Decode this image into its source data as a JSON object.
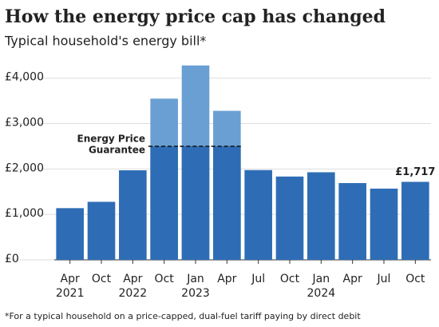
{
  "chart_data": {
    "type": "bar",
    "title": "How the energy price cap has changed",
    "subtitle": "Typical household's energy bill*",
    "footnote": "*For a typical household on a price-capped, dual-fuel tariff paying by direct debit",
    "categories": [
      "Apr",
      "Oct",
      "Apr",
      "Oct",
      "Jan",
      "Apr",
      "Jul",
      "Oct",
      "Jan",
      "Apr",
      "Jul",
      "Oct"
    ],
    "years": [
      "2021",
      null,
      "2022",
      null,
      "2023",
      null,
      null,
      null,
      "2024",
      null,
      null,
      null
    ],
    "values": [
      1138,
      1277,
      1971,
      3549,
      4279,
      3280,
      1976,
      1834,
      1928,
      1690,
      1568,
      1717
    ],
    "value_labels": [
      null,
      null,
      null,
      null,
      null,
      null,
      null,
      null,
      null,
      null,
      null,
      "£1,717"
    ],
    "guarantee": [
      null,
      null,
      null,
      2500,
      2500,
      2500,
      null,
      null,
      null,
      null,
      null,
      null
    ],
    "guarantee_label": [
      "Energy Price",
      "Guarantee"
    ],
    "color": "#2e6db5",
    "capped_color": "#6a9fd3",
    "label_color": "#2e6db5",
    "ylim": [
      0,
      4400
    ],
    "yticks": [
      {
        "value": 0,
        "label": "£0"
      },
      {
        "value": 1000,
        "label": "£1,000"
      },
      {
        "value": 2000,
        "label": "£2,000"
      },
      {
        "value": 3000,
        "label": "£3,000"
      },
      {
        "value": 4000,
        "label": "£4,000"
      }
    ],
    "grid": true
  }
}
